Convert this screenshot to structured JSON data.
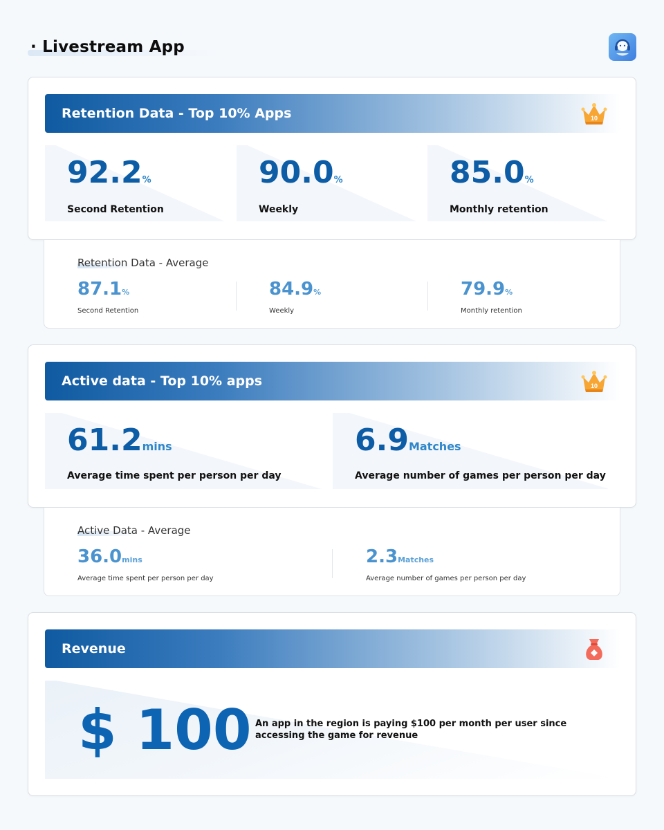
{
  "header": {
    "title": "· Livestream App",
    "logo_icon": "headset-avatar-icon"
  },
  "colors": {
    "primary": "#0f5aa1",
    "value_blue": "#0d5ca6",
    "avg_blue": "#4a93cf",
    "badge_orange": "#f7931e"
  },
  "retention_top": {
    "title": "Retention Data - Top 10% Apps",
    "badge_icon": "crown-top10-icon",
    "badge_text": "10",
    "stats": [
      {
        "value": "92.2",
        "unit": "%",
        "label": "Second Retention"
      },
      {
        "value": "90.0",
        "unit": "%",
        "label": "Weekly"
      },
      {
        "value": "85.0",
        "unit": "%",
        "label": "Monthly retention"
      }
    ]
  },
  "retention_avg": {
    "title": "Retention Data - Average",
    "stats": [
      {
        "value": "87.1",
        "unit": "%",
        "label": "Second Retention"
      },
      {
        "value": "84.9",
        "unit": "%",
        "label": "Weekly"
      },
      {
        "value": "79.9",
        "unit": "%",
        "label": "Monthly retention"
      }
    ]
  },
  "active_top": {
    "title": "Active data - Top 10% apps",
    "badge_icon": "crown-top10-icon",
    "badge_text": "10",
    "stats": [
      {
        "value": "61.2",
        "unit": "mins",
        "label": "Average time spent per person per day"
      },
      {
        "value": "6.9",
        "unit": "Matches",
        "label": "Average number of games per person per day"
      }
    ]
  },
  "active_avg": {
    "title": "Active Data - Average",
    "stats": [
      {
        "value": "36.0",
        "unit": "mins",
        "label": "Average time spent per person per day"
      },
      {
        "value": "2.3",
        "unit": "Matches",
        "label": "Average number of games per person per day"
      }
    ]
  },
  "revenue": {
    "title": "Revenue",
    "badge_icon": "money-bag-icon",
    "value": "$ 100",
    "description": "An app in the region is paying $100 per month per user since accessing the game for revenue"
  }
}
